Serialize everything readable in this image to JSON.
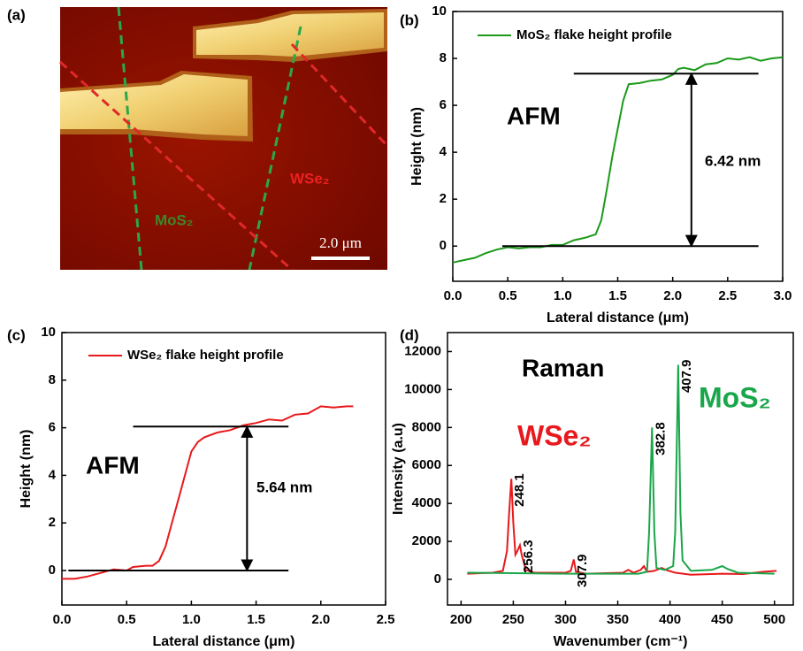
{
  "chart_data": [
    {
      "type": "image",
      "panel_label": "(a)",
      "labels": [
        "WSe₂",
        "MoS₂"
      ],
      "scale_bar": "2.0 μm"
    },
    {
      "type": "line",
      "panel_label": "(b)",
      "xlabel": "Lateral distance (μm)",
      "ylabel": "Height (nm)",
      "xlim": [
        0,
        3
      ],
      "ylim": [
        -1.5,
        10
      ],
      "xticks": [
        {
          "value": 0,
          "label": "0.0"
        },
        {
          "value": 0.5,
          "label": "0.5"
        },
        {
          "value": 1,
          "label": "1.0"
        },
        {
          "value": 1.5,
          "label": "1.5"
        },
        {
          "value": 2,
          "label": "2.0"
        },
        {
          "value": 2.5,
          "label": "2.5"
        },
        {
          "value": 3,
          "label": "3.0"
        }
      ],
      "yticks": [
        0,
        2,
        4,
        6,
        8,
        10
      ],
      "series": [
        {
          "name": "MoS₂ flake height profile",
          "color": "#1a9a1a",
          "x": [
            0,
            0.1,
            0.2,
            0.3,
            0.4,
            0.5,
            0.6,
            0.7,
            0.8,
            0.9,
            1.0,
            1.1,
            1.2,
            1.3,
            1.35,
            1.4,
            1.45,
            1.5,
            1.55,
            1.6,
            1.7,
            1.8,
            1.9,
            2.0,
            2.05,
            2.1,
            2.2,
            2.3,
            2.4,
            2.5,
            2.6,
            2.7,
            2.8,
            2.9,
            3.0
          ],
          "values": [
            -0.7,
            -0.6,
            -0.5,
            -0.3,
            -0.15,
            -0.05,
            -0.1,
            -0.05,
            -0.05,
            0.05,
            0.05,
            0.25,
            0.35,
            0.5,
            1.1,
            2.4,
            3.8,
            5.0,
            6.2,
            6.9,
            6.95,
            7.05,
            7.1,
            7.3,
            7.55,
            7.6,
            7.5,
            7.75,
            7.8,
            8.0,
            7.95,
            8.05,
            7.9,
            8.0,
            8.05
          ]
        }
      ],
      "hlines": [
        {
          "y": 0,
          "xmin": 0.45,
          "xmax": 2.78
        },
        {
          "y": 7.35,
          "xmin": 1.1,
          "xmax": 2.78
        }
      ],
      "arrow": {
        "x": 2.17,
        "y": [
          0,
          7.35
        ]
      },
      "annotations": [
        "AFM",
        "6.42 nm"
      ]
    },
    {
      "type": "line",
      "panel_label": "(c)",
      "xlabel": "Lateral distance (μm)",
      "ylabel": "Height (nm)",
      "xlim": [
        0,
        2.5
      ],
      "ylim": [
        -1.45,
        10
      ],
      "xticks": [
        {
          "value": 0,
          "label": "0.0"
        },
        {
          "value": 0.5,
          "label": "0.5"
        },
        {
          "value": 1,
          "label": "1.0"
        },
        {
          "value": 1.5,
          "label": "1.5"
        },
        {
          "value": 2,
          "label": "2.0"
        },
        {
          "value": 2.5,
          "label": "2.5"
        }
      ],
      "yticks": [
        0,
        2,
        4,
        6,
        8,
        10
      ],
      "series": [
        {
          "name": "WSe₂ flake height profile",
          "color": "#e8191c",
          "x": [
            0,
            0.1,
            0.2,
            0.3,
            0.4,
            0.5,
            0.55,
            0.65,
            0.7,
            0.75,
            0.8,
            0.85,
            0.9,
            0.95,
            1.0,
            1.05,
            1.1,
            1.2,
            1.3,
            1.4,
            1.5,
            1.6,
            1.7,
            1.8,
            1.9,
            2.0,
            2.1,
            2.2,
            2.25
          ],
          "values": [
            -0.35,
            -0.35,
            -0.25,
            -0.1,
            0.05,
            0.0,
            0.15,
            0.2,
            0.2,
            0.4,
            1.0,
            2.0,
            3.0,
            4.0,
            5.0,
            5.4,
            5.6,
            5.8,
            5.9,
            6.1,
            6.2,
            6.35,
            6.3,
            6.55,
            6.6,
            6.9,
            6.85,
            6.9,
            6.9
          ]
        }
      ],
      "hlines": [
        {
          "y": 0,
          "xmin": 0.05,
          "xmax": 1.75
        },
        {
          "y": 6.05,
          "xmin": 0.55,
          "xmax": 1.75
        }
      ],
      "arrow": {
        "x": 1.43,
        "y": [
          0,
          6.05
        ]
      },
      "annotations": [
        "AFM",
        "5.64 nm"
      ]
    },
    {
      "type": "line",
      "panel_label": "(d)",
      "xlabel": "Wavenumber (cm⁻¹)",
      "ylabel": "Intensity (a.u)",
      "xlim": [
        187,
        518
      ],
      "ylim": [
        -1350,
        13000
      ],
      "xticks": [
        200,
        250,
        300,
        350,
        400,
        450,
        500
      ],
      "yticks": [
        0,
        2000,
        4000,
        6000,
        8000,
        10000,
        12000
      ],
      "series": [
        {
          "name": "WSe₂",
          "color": "#e8191c",
          "x": [
            206,
            230,
            240,
            244,
            246,
            248.1,
            250,
            252,
            254,
            256.3,
            258,
            262,
            270,
            300,
            305,
            307.9,
            310,
            320,
            355,
            360,
            365,
            372,
            375,
            378,
            385,
            392,
            396,
            405,
            420,
            450,
            470,
            490,
            502
          ],
          "values": [
            300,
            350,
            450,
            1500,
            3500,
            5300,
            3000,
            1300,
            1500,
            1800,
            1300,
            500,
            350,
            350,
            450,
            1050,
            400,
            300,
            350,
            500,
            350,
            500,
            700,
            400,
            450,
            600,
            500,
            350,
            250,
            300,
            280,
            400,
            450
          ]
        },
        {
          "name": "MoS₂",
          "color": "#1aa64a",
          "x": [
            206,
            240,
            300,
            370,
            378,
            380,
            382.8,
            385,
            387,
            395,
            403,
            405,
            407.9,
            410,
            412,
            420,
            440,
            450,
            455,
            465,
            500
          ],
          "values": [
            350,
            330,
            300,
            300,
            400,
            2500,
            8000,
            2500,
            600,
            500,
            700,
            2500,
            11300,
            3500,
            1000,
            450,
            500,
            700,
            550,
            350,
            300
          ]
        }
      ],
      "peak_labels": [
        248.1,
        256.3,
        307.9,
        382.8,
        407.9
      ],
      "annotations": [
        "Raman"
      ]
    }
  ]
}
